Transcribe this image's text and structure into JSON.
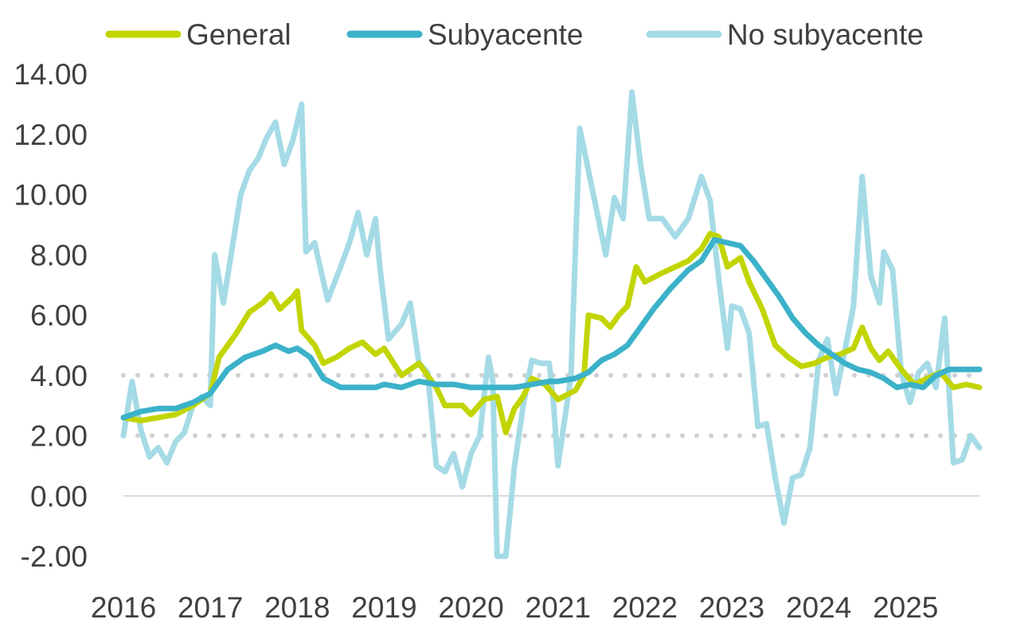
{
  "chart_data": {
    "type": "line",
    "title": "",
    "xlabel": "",
    "ylabel": "",
    "x_tick_labels": [
      "2016",
      "2017",
      "2018",
      "2019",
      "2020",
      "2021",
      "2022",
      "2023",
      "2024",
      "2025"
    ],
    "y_tick_labels": [
      "14.00",
      "12.00",
      "10.00",
      "8.00",
      "6.00",
      "4.00",
      "2.00",
      "0.00",
      "-2.00"
    ],
    "ylim": [
      -2,
      14
    ],
    "xlim": [
      2016.0,
      2025.85
    ],
    "legend_position": "top",
    "grid": false,
    "reference_lines": [
      {
        "y": 4,
        "style": "dotted",
        "color": "#d0d0d0"
      },
      {
        "y": 2,
        "style": "dotted",
        "color": "#d0d0d0"
      }
    ],
    "series": [
      {
        "name": "General",
        "color": "#c2d500",
        "points": [
          [
            2016.0,
            2.6
          ],
          [
            2016.2,
            2.5
          ],
          [
            2016.4,
            2.6
          ],
          [
            2016.6,
            2.7
          ],
          [
            2016.8,
            3.0
          ],
          [
            2017.0,
            3.4
          ],
          [
            2017.1,
            4.6
          ],
          [
            2017.3,
            5.4
          ],
          [
            2017.45,
            6.1
          ],
          [
            2017.6,
            6.4
          ],
          [
            2017.7,
            6.7
          ],
          [
            2017.8,
            6.2
          ],
          [
            2017.95,
            6.6
          ],
          [
            2018.0,
            6.8
          ],
          [
            2018.05,
            5.5
          ],
          [
            2018.2,
            5.0
          ],
          [
            2018.3,
            4.4
          ],
          [
            2018.45,
            4.6
          ],
          [
            2018.6,
            4.9
          ],
          [
            2018.75,
            5.1
          ],
          [
            2018.9,
            4.7
          ],
          [
            2019.0,
            4.9
          ],
          [
            2019.2,
            4.0
          ],
          [
            2019.4,
            4.4
          ],
          [
            2019.5,
            4.0
          ],
          [
            2019.6,
            3.6
          ],
          [
            2019.7,
            3.0
          ],
          [
            2019.9,
            3.0
          ],
          [
            2020.0,
            2.7
          ],
          [
            2020.15,
            3.2
          ],
          [
            2020.3,
            3.3
          ],
          [
            2020.4,
            2.1
          ],
          [
            2020.5,
            2.9
          ],
          [
            2020.6,
            3.3
          ],
          [
            2020.7,
            3.9
          ],
          [
            2020.85,
            3.7
          ],
          [
            2021.0,
            3.2
          ],
          [
            2021.2,
            3.5
          ],
          [
            2021.3,
            4.0
          ],
          [
            2021.35,
            6.0
          ],
          [
            2021.5,
            5.9
          ],
          [
            2021.6,
            5.6
          ],
          [
            2021.7,
            6.0
          ],
          [
            2021.8,
            6.3
          ],
          [
            2021.9,
            7.6
          ],
          [
            2022.0,
            7.1
          ],
          [
            2022.2,
            7.4
          ],
          [
            2022.35,
            7.6
          ],
          [
            2022.5,
            7.8
          ],
          [
            2022.65,
            8.2
          ],
          [
            2022.75,
            8.7
          ],
          [
            2022.85,
            8.6
          ],
          [
            2022.95,
            7.6
          ],
          [
            2023.1,
            7.9
          ],
          [
            2023.2,
            7.1
          ],
          [
            2023.35,
            6.2
          ],
          [
            2023.5,
            5.0
          ],
          [
            2023.65,
            4.6
          ],
          [
            2023.8,
            4.3
          ],
          [
            2023.95,
            4.4
          ],
          [
            2024.1,
            4.6
          ],
          [
            2024.25,
            4.7
          ],
          [
            2024.4,
            4.9
          ],
          [
            2024.5,
            5.6
          ],
          [
            2024.6,
            4.9
          ],
          [
            2024.7,
            4.5
          ],
          [
            2024.8,
            4.8
          ],
          [
            2024.95,
            4.2
          ],
          [
            2025.1,
            3.7
          ],
          [
            2025.25,
            3.9
          ],
          [
            2025.4,
            4.1
          ],
          [
            2025.55,
            3.6
          ],
          [
            2025.7,
            3.7
          ],
          [
            2025.85,
            3.6
          ]
        ]
      },
      {
        "name": "Subyacente",
        "color": "#3bb2c9",
        "points": [
          [
            2016.0,
            2.6
          ],
          [
            2016.2,
            2.8
          ],
          [
            2016.4,
            2.9
          ],
          [
            2016.6,
            2.9
          ],
          [
            2016.8,
            3.1
          ],
          [
            2017.0,
            3.4
          ],
          [
            2017.2,
            4.2
          ],
          [
            2017.4,
            4.6
          ],
          [
            2017.6,
            4.8
          ],
          [
            2017.75,
            5.0
          ],
          [
            2017.9,
            4.8
          ],
          [
            2018.0,
            4.9
          ],
          [
            2018.15,
            4.6
          ],
          [
            2018.3,
            3.9
          ],
          [
            2018.5,
            3.6
          ],
          [
            2018.7,
            3.6
          ],
          [
            2018.9,
            3.6
          ],
          [
            2019.0,
            3.7
          ],
          [
            2019.2,
            3.6
          ],
          [
            2019.4,
            3.8
          ],
          [
            2019.6,
            3.7
          ],
          [
            2019.8,
            3.7
          ],
          [
            2020.0,
            3.6
          ],
          [
            2020.2,
            3.6
          ],
          [
            2020.35,
            3.6
          ],
          [
            2020.5,
            3.6
          ],
          [
            2020.7,
            3.7
          ],
          [
            2020.9,
            3.8
          ],
          [
            2021.0,
            3.8
          ],
          [
            2021.2,
            3.9
          ],
          [
            2021.35,
            4.1
          ],
          [
            2021.5,
            4.5
          ],
          [
            2021.65,
            4.7
          ],
          [
            2021.8,
            5.0
          ],
          [
            2021.95,
            5.6
          ],
          [
            2022.1,
            6.2
          ],
          [
            2022.3,
            6.9
          ],
          [
            2022.5,
            7.5
          ],
          [
            2022.65,
            7.8
          ],
          [
            2022.8,
            8.5
          ],
          [
            2022.95,
            8.4
          ],
          [
            2023.1,
            8.3
          ],
          [
            2023.25,
            7.8
          ],
          [
            2023.4,
            7.2
          ],
          [
            2023.55,
            6.6
          ],
          [
            2023.7,
            5.9
          ],
          [
            2023.85,
            5.4
          ],
          [
            2024.0,
            5.0
          ],
          [
            2024.15,
            4.7
          ],
          [
            2024.3,
            4.4
          ],
          [
            2024.45,
            4.2
          ],
          [
            2024.6,
            4.1
          ],
          [
            2024.75,
            3.9
          ],
          [
            2024.9,
            3.6
          ],
          [
            2025.05,
            3.7
          ],
          [
            2025.2,
            3.6
          ],
          [
            2025.35,
            4.0
          ],
          [
            2025.5,
            4.2
          ],
          [
            2025.65,
            4.2
          ],
          [
            2025.85,
            4.2
          ]
        ]
      },
      {
        "name": "No subyacente",
        "color": "#a5dbe6",
        "points": [
          [
            2016.0,
            2.0
          ],
          [
            2016.1,
            3.8
          ],
          [
            2016.2,
            2.2
          ],
          [
            2016.3,
            1.3
          ],
          [
            2016.4,
            1.6
          ],
          [
            2016.5,
            1.1
          ],
          [
            2016.6,
            1.8
          ],
          [
            2016.7,
            2.1
          ],
          [
            2016.8,
            3.0
          ],
          [
            2016.9,
            3.3
          ],
          [
            2017.0,
            3.0
          ],
          [
            2017.05,
            8.0
          ],
          [
            2017.15,
            6.4
          ],
          [
            2017.25,
            8.2
          ],
          [
            2017.35,
            10.0
          ],
          [
            2017.45,
            10.8
          ],
          [
            2017.55,
            11.2
          ],
          [
            2017.65,
            11.9
          ],
          [
            2017.75,
            12.4
          ],
          [
            2017.85,
            11.0
          ],
          [
            2017.95,
            11.8
          ],
          [
            2018.05,
            13.0
          ],
          [
            2018.1,
            8.1
          ],
          [
            2018.2,
            8.4
          ],
          [
            2018.35,
            6.5
          ],
          [
            2018.5,
            7.6
          ],
          [
            2018.6,
            8.4
          ],
          [
            2018.7,
            9.4
          ],
          [
            2018.8,
            8.0
          ],
          [
            2018.9,
            9.2
          ],
          [
            2018.95,
            7.6
          ],
          [
            2019.05,
            5.2
          ],
          [
            2019.2,
            5.7
          ],
          [
            2019.3,
            6.4
          ],
          [
            2019.4,
            4.4
          ],
          [
            2019.5,
            4.1
          ],
          [
            2019.6,
            1.0
          ],
          [
            2019.7,
            0.8
          ],
          [
            2019.8,
            1.4
          ],
          [
            2019.9,
            0.3
          ],
          [
            2020.0,
            1.4
          ],
          [
            2020.1,
            2.0
          ],
          [
            2020.2,
            4.6
          ],
          [
            2020.25,
            3.8
          ],
          [
            2020.3,
            -2.0
          ],
          [
            2020.4,
            -2.0
          ],
          [
            2020.5,
            1.0
          ],
          [
            2020.6,
            3.0
          ],
          [
            2020.7,
            4.5
          ],
          [
            2020.8,
            4.4
          ],
          [
            2020.9,
            4.4
          ],
          [
            2020.95,
            3.0
          ],
          [
            2021.0,
            1.0
          ],
          [
            2021.1,
            3.0
          ],
          [
            2021.15,
            4.0
          ],
          [
            2021.25,
            12.2
          ],
          [
            2021.35,
            10.8
          ],
          [
            2021.45,
            9.4
          ],
          [
            2021.55,
            8.0
          ],
          [
            2021.65,
            9.9
          ],
          [
            2021.75,
            9.2
          ],
          [
            2021.85,
            13.4
          ],
          [
            2021.95,
            11.0
          ],
          [
            2022.05,
            9.2
          ],
          [
            2022.2,
            9.2
          ],
          [
            2022.35,
            8.6
          ],
          [
            2022.5,
            9.2
          ],
          [
            2022.65,
            10.6
          ],
          [
            2022.75,
            9.8
          ],
          [
            2022.85,
            7.2
          ],
          [
            2022.95,
            4.9
          ],
          [
            2023.0,
            6.3
          ],
          [
            2023.1,
            6.2
          ],
          [
            2023.2,
            5.4
          ],
          [
            2023.3,
            2.3
          ],
          [
            2023.4,
            2.4
          ],
          [
            2023.5,
            0.6
          ],
          [
            2023.6,
            -0.9
          ],
          [
            2023.7,
            0.6
          ],
          [
            2023.8,
            0.7
          ],
          [
            2023.9,
            1.6
          ],
          [
            2024.0,
            4.5
          ],
          [
            2024.1,
            5.2
          ],
          [
            2024.2,
            3.4
          ],
          [
            2024.3,
            4.8
          ],
          [
            2024.4,
            6.3
          ],
          [
            2024.5,
            10.6
          ],
          [
            2024.6,
            7.3
          ],
          [
            2024.7,
            6.4
          ],
          [
            2024.75,
            8.1
          ],
          [
            2024.85,
            7.5
          ],
          [
            2024.95,
            4.1
          ],
          [
            2025.05,
            3.1
          ],
          [
            2025.15,
            4.1
          ],
          [
            2025.25,
            4.4
          ],
          [
            2025.35,
            3.6
          ],
          [
            2025.45,
            5.9
          ],
          [
            2025.55,
            1.1
          ],
          [
            2025.65,
            1.2
          ],
          [
            2025.75,
            2.0
          ],
          [
            2025.85,
            1.6
          ]
        ]
      }
    ]
  }
}
